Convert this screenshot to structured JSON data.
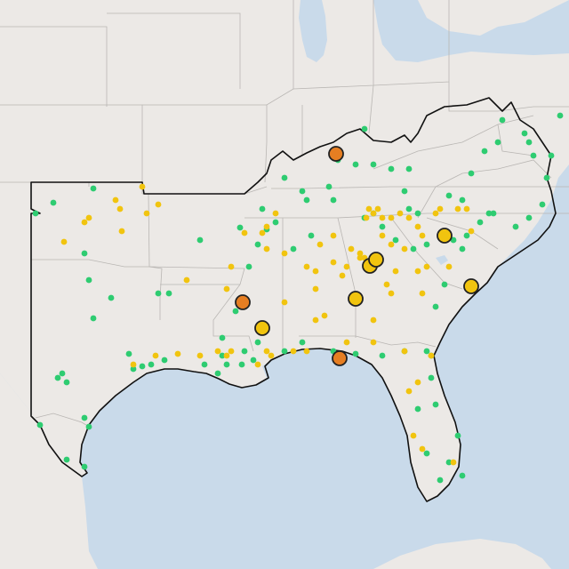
{
  "map": {
    "type": "point-map",
    "base_layer": "light-gray-canvas",
    "colors": {
      "water": "#c9daea",
      "land": "#ece9e6",
      "state_border": "#b9b6b3",
      "region_outline": "#111111",
      "green_marker": "#2ecc71",
      "yellow_marker": "#f1c40f",
      "orange_marker": "#e67e22"
    },
    "marker_classes": [
      {
        "id": "green",
        "style": "small-dot"
      },
      {
        "id": "yellow",
        "style": "small-dot"
      },
      {
        "id": "yellow_large",
        "style": "large-circle-outlined"
      },
      {
        "id": "orange_large",
        "style": "large-circle-outlined"
      }
    ],
    "large_marker_count": 11
  }
}
